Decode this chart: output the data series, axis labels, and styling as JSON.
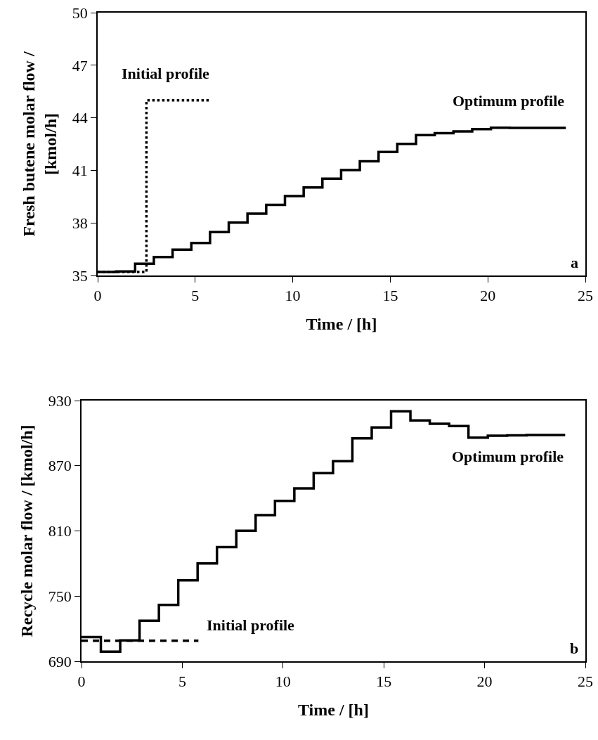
{
  "chart_data": [
    {
      "type": "step",
      "xlabel": "Time / [h]",
      "ylabel": "Fresh butene molar flow /\n[kmol/h]",
      "xlim": [
        0,
        25
      ],
      "xticks": [
        0,
        5,
        10,
        15,
        20,
        25
      ],
      "ylim": [
        35,
        50
      ],
      "yticks": [
        35,
        38,
        41,
        44,
        47,
        50
      ],
      "legend": false,
      "marker": "none",
      "series": [
        {
          "name": "Optimum profile",
          "color": "#000000",
          "line_style": "solid",
          "x": [
            0,
            0.96,
            1.92,
            2.88,
            3.84,
            4.8,
            5.76,
            6.72,
            7.68,
            8.64,
            9.6,
            10.56,
            11.52,
            12.48,
            13.44,
            14.4,
            15.36,
            16.32,
            17.28,
            18.24,
            19.2,
            20.16,
            21.12,
            22.08,
            23.04,
            24
          ],
          "values": [
            35.2,
            35.23,
            35.67,
            36.05,
            36.47,
            36.85,
            37.48,
            38.02,
            38.53,
            39.03,
            39.53,
            40.02,
            40.52,
            41.02,
            41.52,
            42.05,
            42.51,
            43.01,
            43.12,
            43.22,
            43.35,
            43.43,
            43.42,
            43.42,
            43.42,
            43.42
          ]
        },
        {
          "name": "Initial profile",
          "color": "#000000",
          "line_style": "dotted",
          "x": [
            0,
            2.5,
            5.8
          ],
          "values": [
            35.2,
            45,
            45
          ]
        }
      ],
      "annotations": [
        "a"
      ]
    },
    {
      "type": "step",
      "xlabel": "Time / [h]",
      "ylabel": "Recycle molar flow / [kmol/h]",
      "xlim": [
        0,
        25
      ],
      "xticks": [
        0,
        5,
        10,
        15,
        20,
        25
      ],
      "ylim": [
        690,
        930
      ],
      "yticks": [
        690,
        750,
        810,
        870,
        930
      ],
      "legend": false,
      "marker": "none",
      "series": [
        {
          "name": "Optimum profile",
          "color": "#000000",
          "line_style": "solid",
          "x": [
            0,
            0.96,
            1.92,
            2.88,
            3.84,
            4.8,
            5.76,
            6.72,
            7.68,
            8.64,
            9.6,
            10.56,
            11.52,
            12.48,
            13.44,
            14.4,
            15.36,
            16.32,
            17.28,
            18.24,
            19.2,
            20.16,
            21.12,
            22.08,
            23.04,
            24
          ],
          "values": [
            712.3,
            698.9,
            709.3,
            727.3,
            741.9,
            764.5,
            780.0,
            795.2,
            810.2,
            824.5,
            837.6,
            849.2,
            863.2,
            874.2,
            895.2,
            905.3,
            920.2,
            911.7,
            908.7,
            906.5,
            895.9,
            897.7,
            898.0,
            898.3,
            898.3,
            898.3
          ]
        },
        {
          "name": "Initial profile",
          "color": "#000000",
          "line_style": "dashed",
          "x": [
            0,
            5.8
          ],
          "values": [
            709,
            709
          ]
        }
      ],
      "annotations": [
        "b"
      ]
    }
  ]
}
